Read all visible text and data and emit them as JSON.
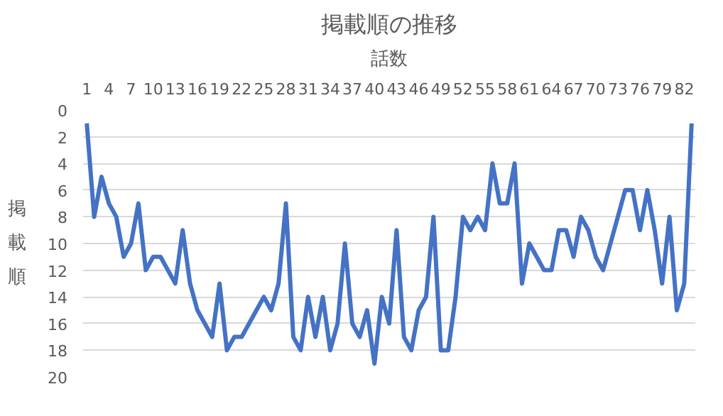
{
  "chart_data": {
    "type": "line",
    "title": "掲載順の推移",
    "xlabel": "話数",
    "ylabel": "掲載順",
    "categories": [
      "1",
      null,
      null,
      "4",
      null,
      null,
      "7",
      null,
      null,
      "10",
      null,
      null,
      "13",
      null,
      null,
      "16",
      null,
      null,
      "19",
      null,
      null,
      "22",
      null,
      null,
      "25",
      null,
      null,
      "28",
      null,
      null,
      "31",
      null,
      null,
      "34",
      null,
      null,
      "37",
      null,
      null,
      "40",
      null,
      null,
      "43",
      null,
      null,
      "46",
      null,
      null,
      "49",
      null,
      null,
      "52",
      null,
      null,
      "55",
      null,
      null,
      "58",
      null,
      null,
      "61",
      null,
      null,
      "64",
      null,
      null,
      "67",
      null,
      null,
      "70",
      null,
      null,
      "73",
      null,
      null,
      "76",
      null,
      null,
      "79",
      null,
      null,
      "82",
      null
    ],
    "series": [
      {
        "color": "#4472c4",
        "values": [
          1,
          8,
          5,
          7,
          8,
          11,
          10,
          7,
          12,
          11,
          11,
          12,
          13,
          9,
          13,
          15,
          16,
          17,
          13,
          18,
          17,
          17,
          16,
          15,
          14,
          15,
          13,
          7,
          17,
          18,
          14,
          17,
          14,
          18,
          16,
          10,
          16,
          17,
          15,
          19,
          14,
          16,
          9,
          17,
          18,
          15,
          14,
          8,
          18,
          18,
          14,
          8,
          9,
          8,
          9,
          4,
          7,
          7,
          4,
          13,
          10,
          11,
          12,
          12,
          9,
          9,
          11,
          8,
          9,
          11,
          12,
          10,
          8,
          6,
          6,
          9,
          6,
          9,
          13,
          8,
          15,
          13,
          1
        ]
      }
    ],
    "ylim": [
      20,
      0
    ],
    "yticks": [
      0,
      2,
      4,
      6,
      8,
      10,
      12,
      14,
      16,
      18,
      20
    ],
    "grid": "y"
  }
}
